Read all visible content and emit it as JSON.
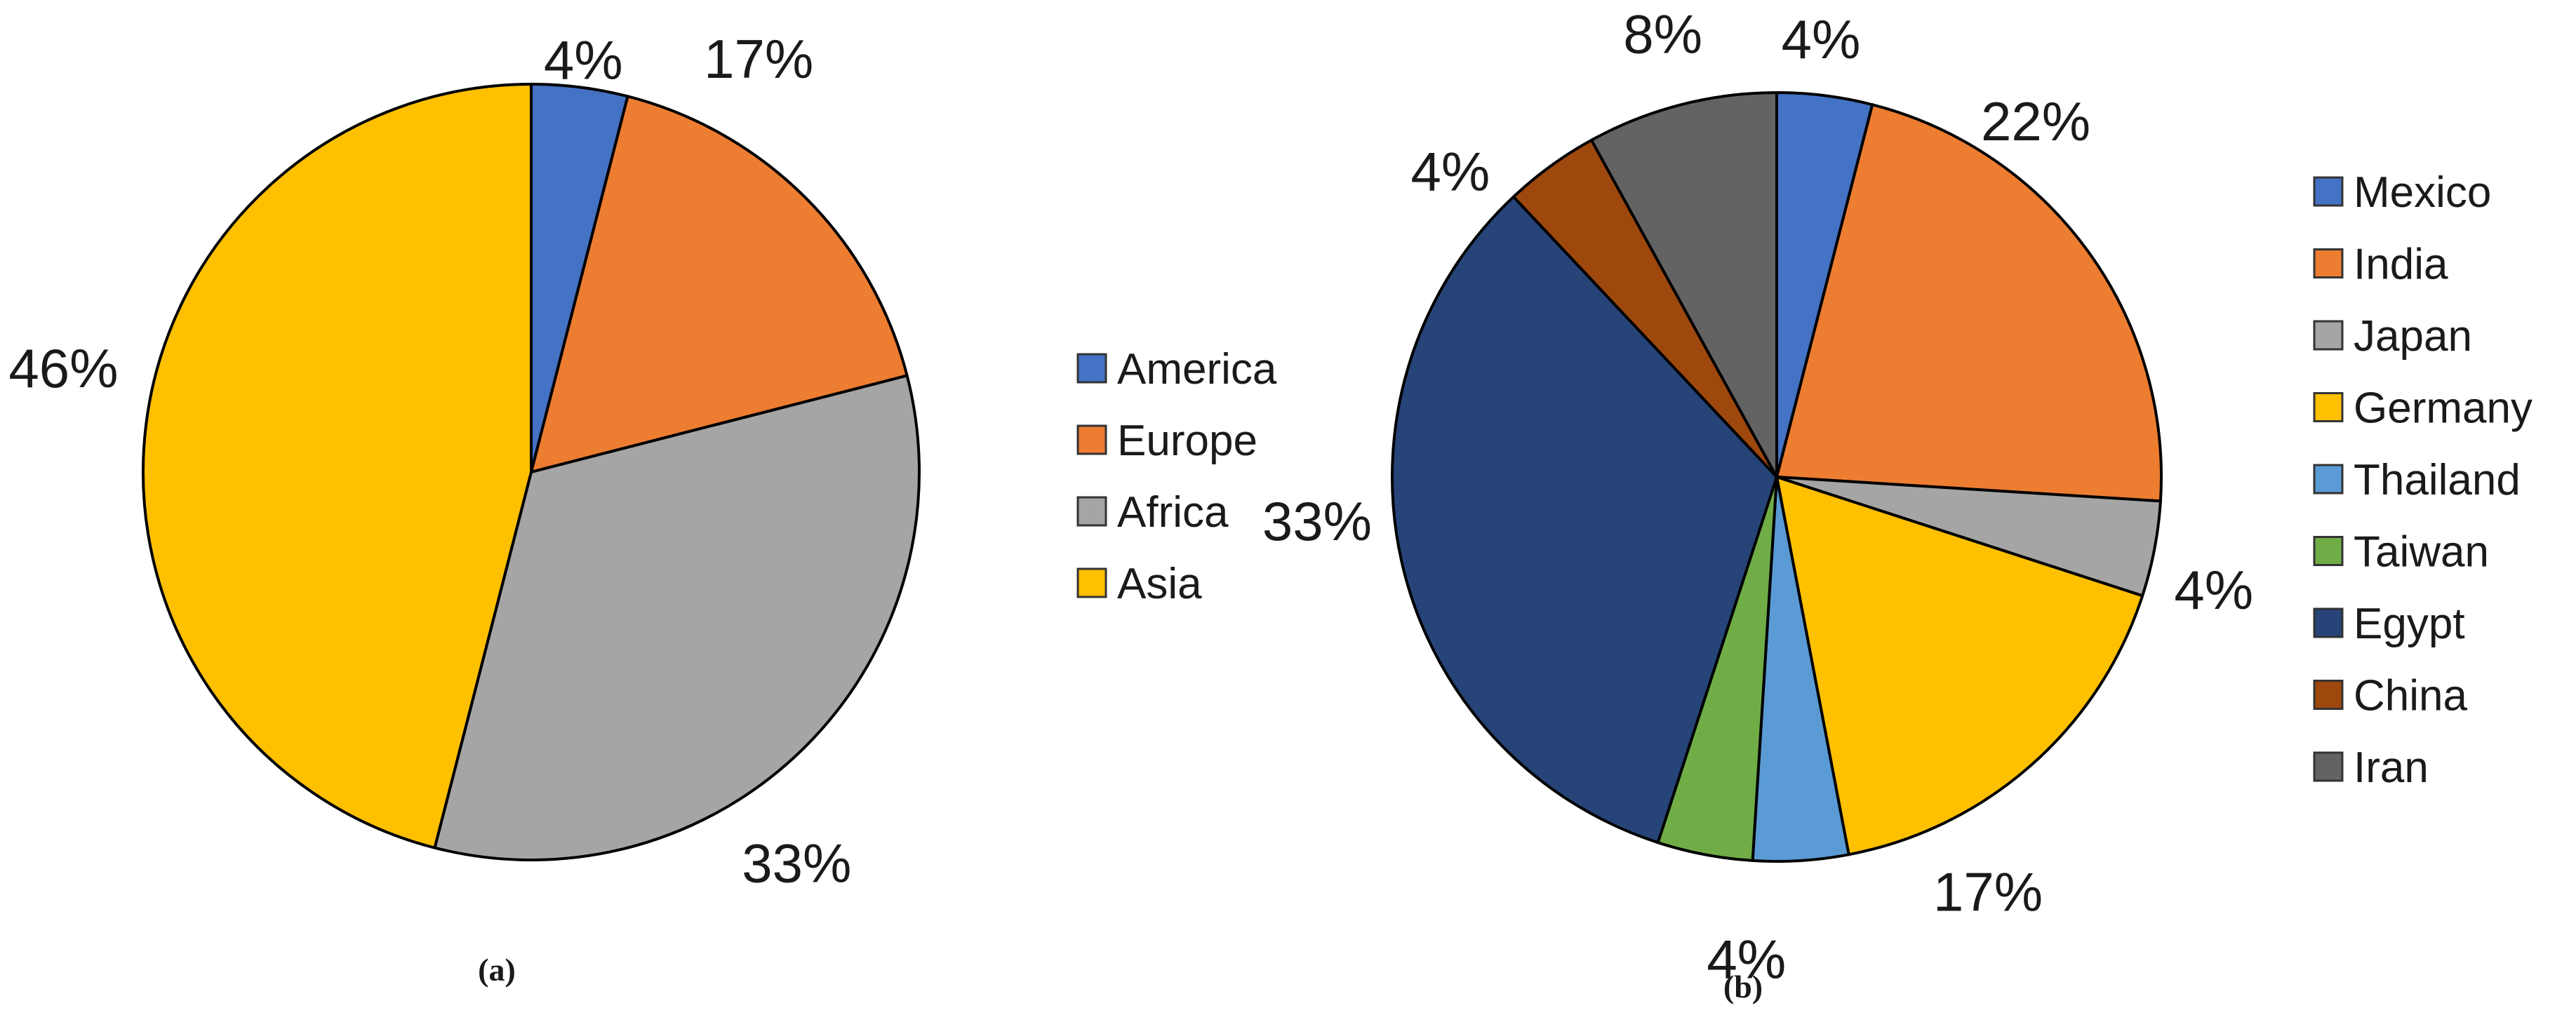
{
  "chart_data": [
    {
      "type": "pie",
      "panel_caption": "(a)",
      "categories": [
        "America",
        "Europe",
        "Africa",
        "Asia"
      ],
      "values": [
        4,
        17,
        33,
        46
      ],
      "data_labels": [
        "4%",
        "17%",
        "33%",
        "46%"
      ],
      "colors": [
        "#4472C4",
        "#ED7D31",
        "#A5A5A5",
        "#FFC000"
      ],
      "start": "12 o'clock, clockwise",
      "legend_position": "right"
    },
    {
      "type": "pie",
      "panel_caption": "(b)",
      "categories": [
        "Mexico",
        "India",
        "Japan",
        "Germany",
        "Thailand",
        "Taiwan",
        "Egypt",
        "China",
        "Iran"
      ],
      "values": [
        4,
        22,
        4,
        17,
        4,
        4,
        33,
        4,
        8
      ],
      "data_labels": [
        "4%",
        "22%",
        "4%",
        "17%",
        "4%",
        "4%",
        "33%",
        "4%",
        "8%"
      ],
      "colors": [
        "#4472C4",
        "#ED7D31",
        "#A5A5A5",
        "#FFC000",
        "#5B9BD5",
        "#70AD47",
        "#264478",
        "#9E480E",
        "#636363"
      ],
      "start": "12 o'clock, clockwise",
      "legend_position": "right"
    }
  ]
}
